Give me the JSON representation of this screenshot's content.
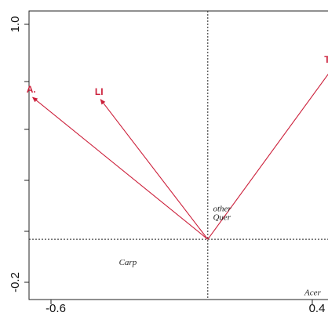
{
  "chart_data": {
    "type": "scatter",
    "title": "",
    "xlabel": "",
    "ylabel": "",
    "xlim": [
      -0.6,
      0.4
    ],
    "ylim": [
      -0.2,
      1.0
    ],
    "x_tick_labels": [
      "-0.6",
      "0.4"
    ],
    "y_tick_labels": [
      "-0.2",
      "1.0"
    ],
    "grid": false,
    "reference_lines": {
      "x": 0,
      "y": 0
    },
    "arrow_color": "#cc1f3a",
    "arrows": [
      {
        "label": "A.",
        "x": -0.67,
        "y": 0.66
      },
      {
        "label": "LI",
        "x": -0.41,
        "y": 0.65
      },
      {
        "label": "TSI",
        "x": 0.48,
        "y": 0.8
      }
    ],
    "species": [
      {
        "label": "other",
        "x": 0.02,
        "y": 0.13
      },
      {
        "label": "Quer",
        "x": 0.02,
        "y": 0.09
      },
      {
        "label": "Carp",
        "x": -0.34,
        "y": -0.12
      },
      {
        "label": "Acer",
        "x": 0.37,
        "y": -0.26
      }
    ]
  }
}
